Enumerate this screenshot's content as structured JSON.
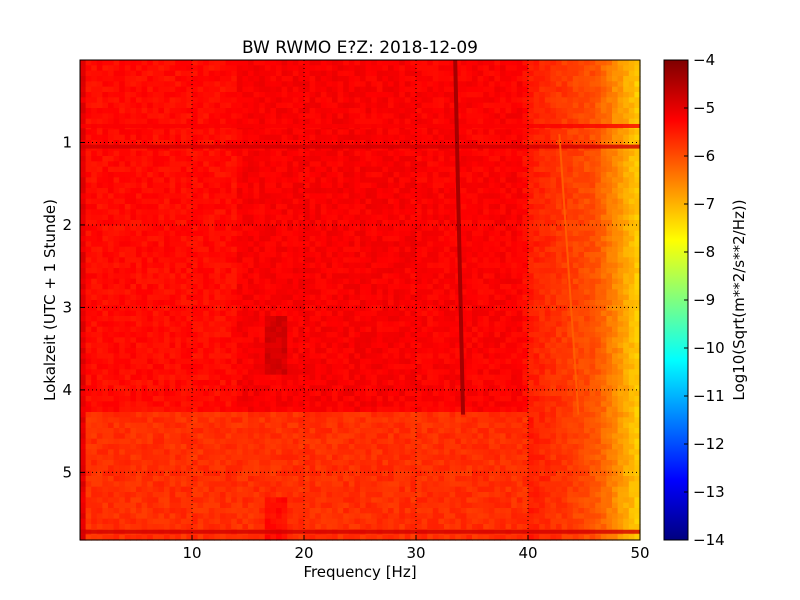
{
  "chart_data": {
    "type": "heatmap",
    "title": "BW RWMO E?Z: 2018-12-09",
    "xlabel": "Frequency [Hz]",
    "ylabel": "Lokalzeit (UTC + 1 Stunde)",
    "xlim": [
      0,
      50
    ],
    "ylim": [
      5.82,
      0
    ],
    "x_ticks": [
      10,
      20,
      30,
      40,
      50
    ],
    "y_ticks": [
      1,
      2,
      3,
      4,
      5
    ],
    "grid": true,
    "colorbar": {
      "label": "Log10(Sqrt(m**2/s**2/Hz))",
      "range": [
        -14,
        -4
      ],
      "ticks": [
        -4,
        -5,
        -6,
        -7,
        -8,
        -9,
        -10,
        -11,
        -12,
        -13,
        -14
      ],
      "colormap": "jet"
    },
    "features": [
      {
        "kind": "dark-line",
        "x_start": 33.5,
        "x_end": 34.2,
        "y_start": 0,
        "y_end": 4.3,
        "value": -4.3
      },
      {
        "kind": "faint-line",
        "x_start": 42.8,
        "x_end": 44.5,
        "y_start": 0.9,
        "y_end": 4.3,
        "value": -6.2
      },
      {
        "kind": "band",
        "x_start": 0,
        "x_end": 50,
        "y": 0.8,
        "value": -5.2
      },
      {
        "kind": "band",
        "x_start": 0,
        "x_end": 50,
        "y": 1.05,
        "value": -4.8
      },
      {
        "kind": "band",
        "x_start": 0,
        "x_end": 50,
        "y": 5.72,
        "value": -4.8
      },
      {
        "kind": "regime-change",
        "y": 4.3
      }
    ]
  }
}
